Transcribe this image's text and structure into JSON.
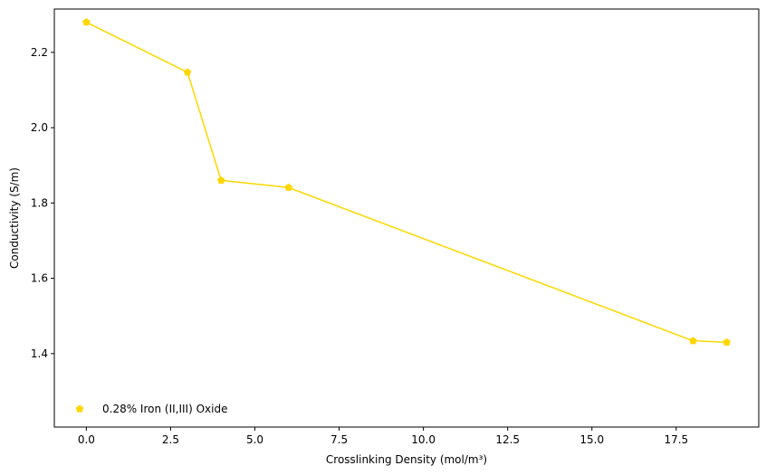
{
  "chart_data": {
    "type": "line",
    "title": "",
    "xlabel": "Crosslinking Density (mol/m³)",
    "ylabel": "Conductivity (S/m)",
    "xlim": [
      -0.95,
      19.95
    ],
    "ylim": [
      1.205,
      2.315
    ],
    "xticks": [
      0.0,
      2.5,
      5.0,
      7.5,
      10.0,
      12.5,
      15.0,
      17.5
    ],
    "xtick_labels": [
      "0.0",
      "2.5",
      "5.0",
      "7.5",
      "10.0",
      "12.5",
      "15.0",
      "17.5"
    ],
    "yticks": [
      1.4,
      1.6,
      1.8,
      2.0,
      2.2
    ],
    "ytick_labels": [
      "1.4",
      "1.6",
      "1.8",
      "2.0",
      "2.2"
    ],
    "grid": false,
    "legend_position": "lower-left",
    "series": [
      {
        "name": "0.28% Iron (II,III) Oxide",
        "color": "#FFD700",
        "marker": "pentagon",
        "x": [
          0,
          3,
          4,
          6,
          18,
          19
        ],
        "y": [
          2.28,
          2.147,
          1.86,
          1.841,
          1.434,
          1.43
        ]
      }
    ]
  }
}
